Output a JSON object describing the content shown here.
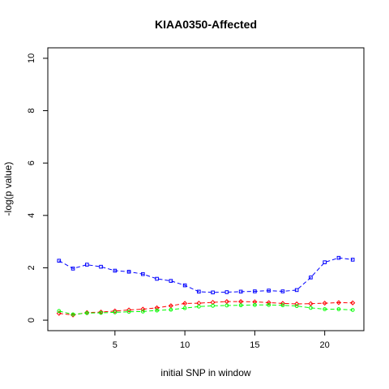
{
  "chart_data": {
    "type": "line",
    "title": "KIAA0350-Affected",
    "xlabel": "initial SNP in window",
    "ylabel": "-log(p value)",
    "xlim": [
      0.2,
      22.8
    ],
    "ylim": [
      -0.4,
      10.4
    ],
    "xticks": [
      5,
      10,
      15,
      20
    ],
    "yticks": [
      0,
      2,
      4,
      6,
      8,
      10
    ],
    "grid": false,
    "x": [
      1,
      2,
      3,
      4,
      5,
      6,
      7,
      8,
      9,
      10,
      11,
      12,
      13,
      14,
      15,
      16,
      17,
      18,
      19,
      20,
      21,
      22
    ],
    "series": [
      {
        "color": "#0000ff",
        "marker": "square",
        "values": [
          2.27,
          1.97,
          2.12,
          2.04,
          1.89,
          1.85,
          1.76,
          1.58,
          1.5,
          1.33,
          1.09,
          1.06,
          1.07,
          1.09,
          1.1,
          1.13,
          1.1,
          1.15,
          1.63,
          2.21,
          2.38,
          2.31
        ]
      },
      {
        "color": "#ff0000",
        "marker": "diamond",
        "values": [
          0.26,
          0.2,
          0.29,
          0.31,
          0.35,
          0.39,
          0.42,
          0.47,
          0.55,
          0.64,
          0.65,
          0.68,
          0.71,
          0.71,
          0.7,
          0.67,
          0.64,
          0.62,
          0.63,
          0.65,
          0.67,
          0.66
        ]
      },
      {
        "color": "#00ff00",
        "marker": "circle",
        "values": [
          0.35,
          0.22,
          0.27,
          0.28,
          0.3,
          0.32,
          0.33,
          0.37,
          0.4,
          0.46,
          0.52,
          0.55,
          0.56,
          0.57,
          0.58,
          0.58,
          0.57,
          0.54,
          0.47,
          0.42,
          0.42,
          0.39
        ]
      }
    ]
  }
}
